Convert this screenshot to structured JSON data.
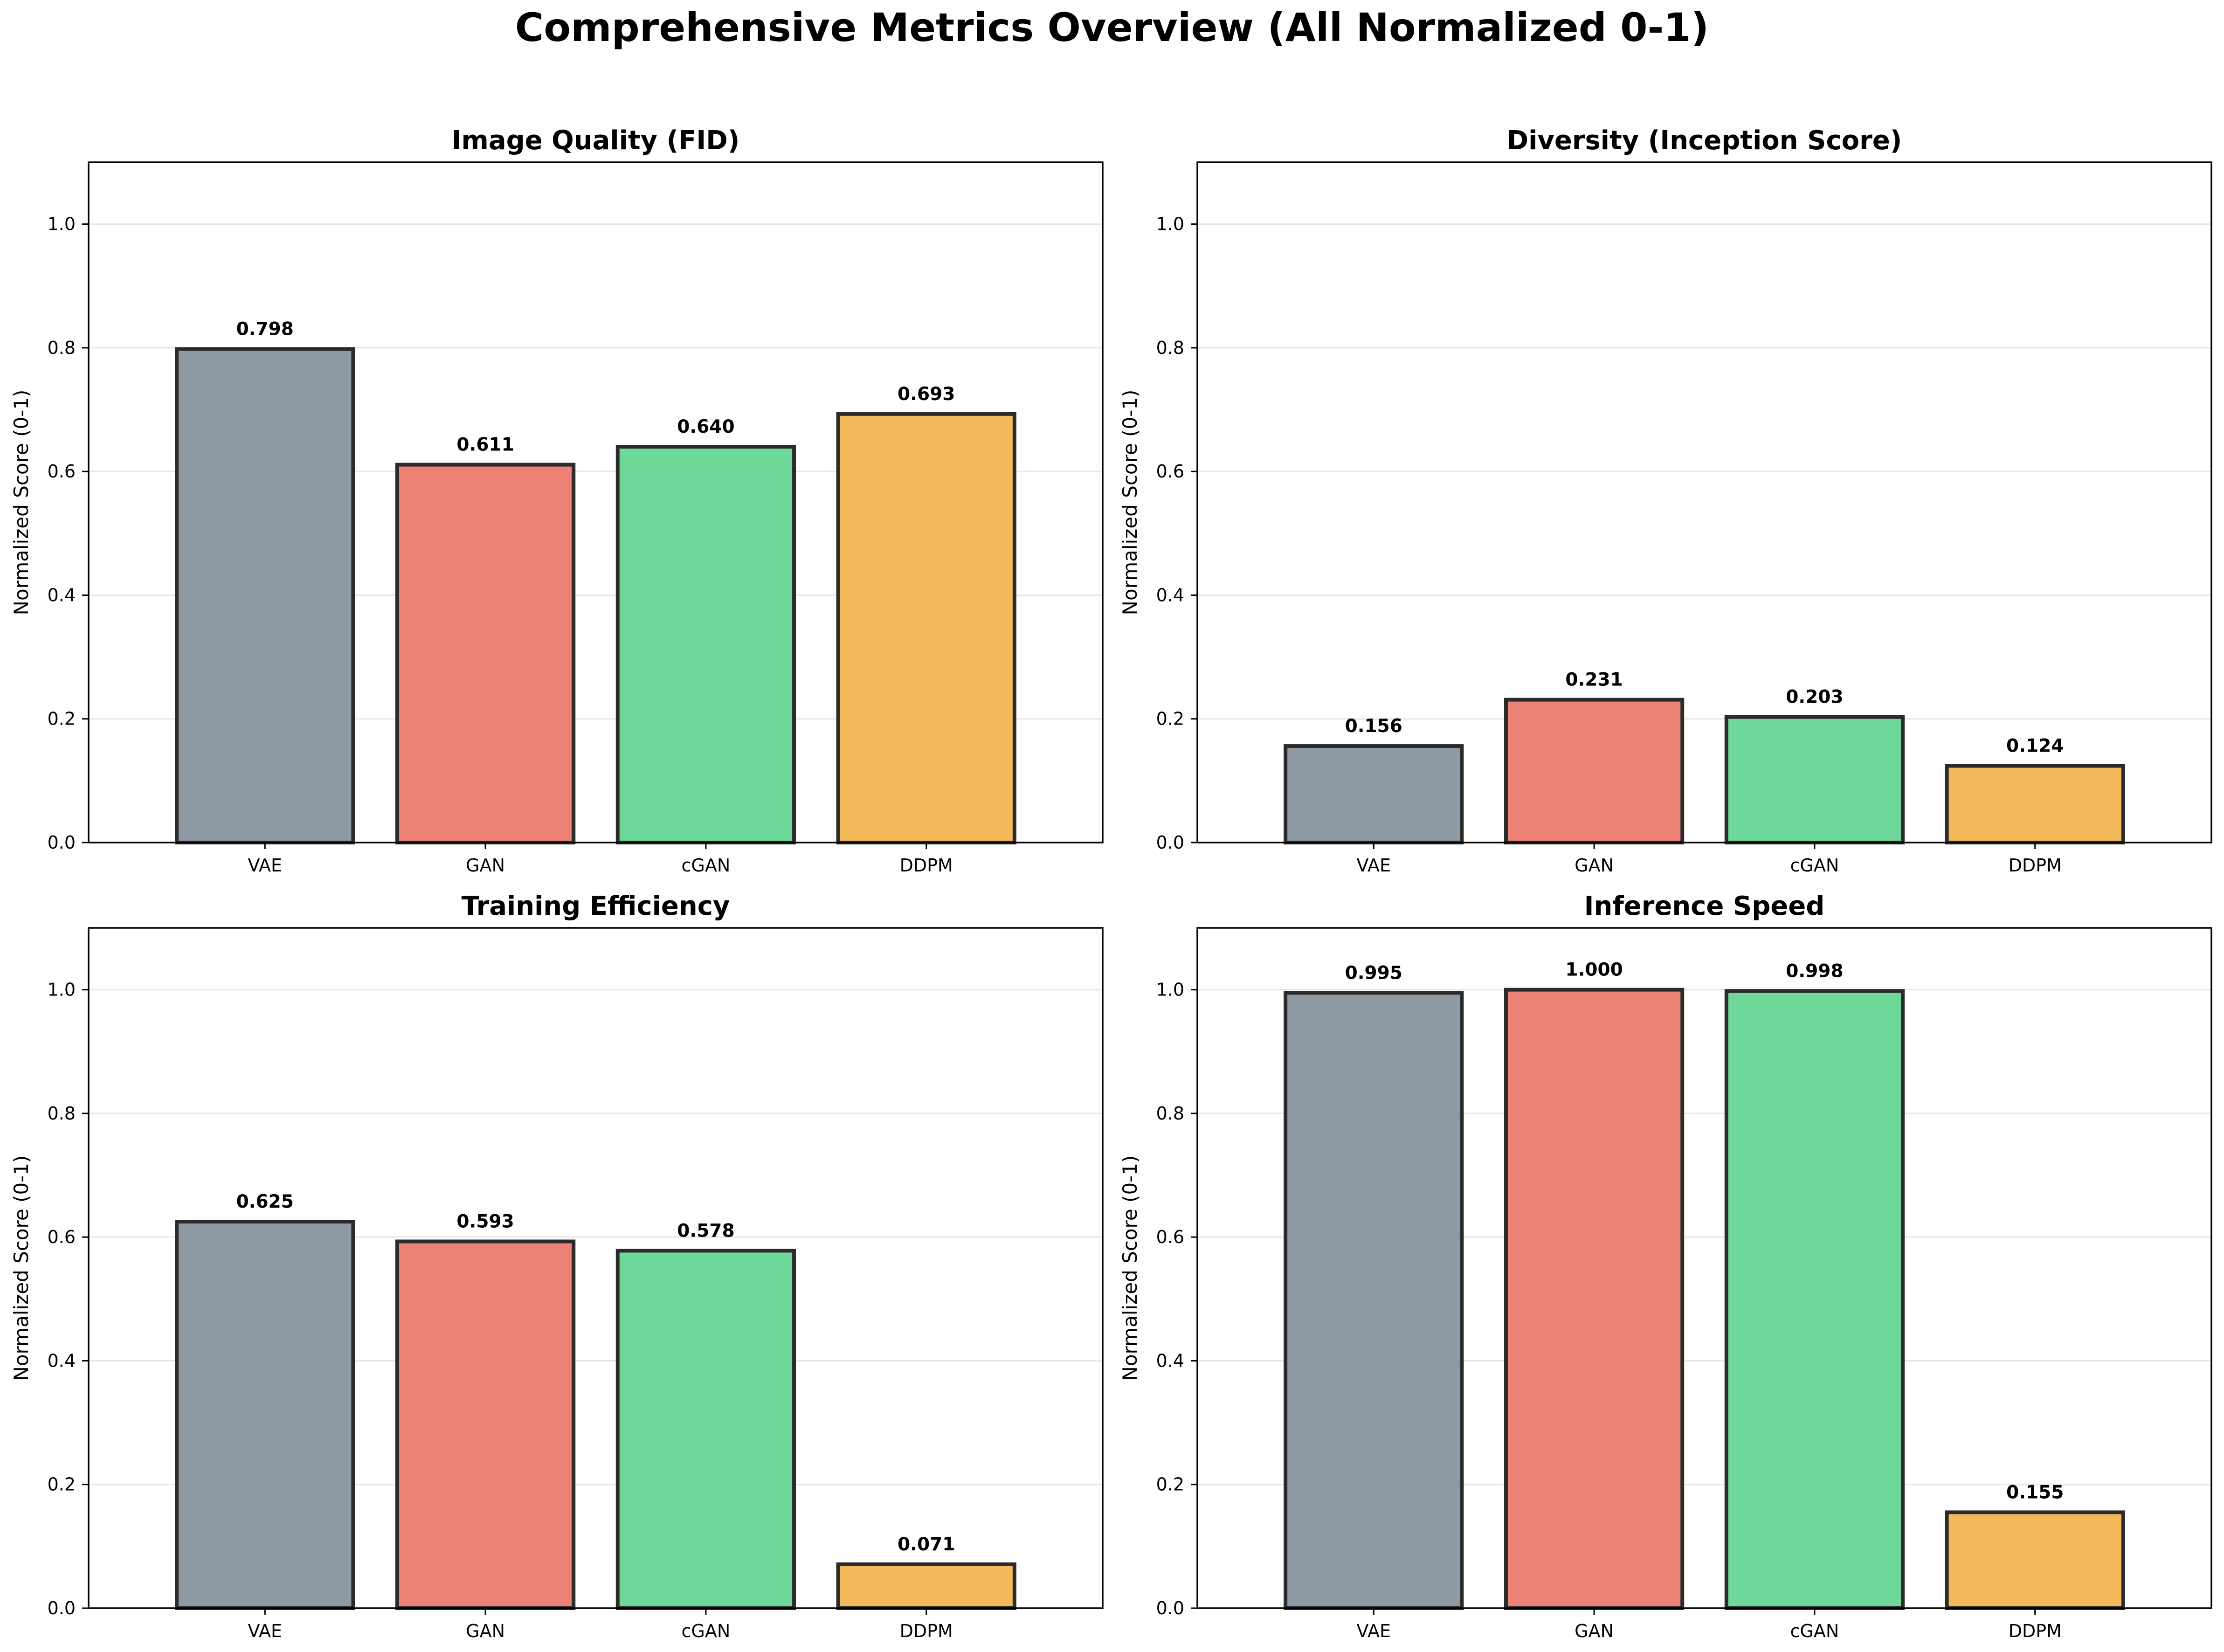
{
  "title": "Comprehensive Metrics Overview (All Normalized 0-1)",
  "colors": {
    "VAE": "#8e99a4",
    "GAN": "#ee8176",
    "cGAN": "#6ed898",
    "DDPM": "#f4b95a",
    "edge": "#2b2b2b",
    "grid": "#e6e6e6"
  },
  "chart_data": [
    {
      "type": "bar",
      "title": "Image Quality (FID)",
      "ylabel": "Normalized Score (0-1)",
      "categories": [
        "VAE",
        "GAN",
        "cGAN",
        "DDPM"
      ],
      "values": [
        0.798,
        0.611,
        0.64,
        0.693
      ],
      "value_labels": [
        "0.798",
        "0.611",
        "0.640",
        "0.693"
      ],
      "ylim": [
        0,
        1.1
      ],
      "yticks": [
        0.0,
        0.2,
        0.4,
        0.6,
        0.8,
        1.0
      ],
      "ytick_labels": [
        "0.0",
        "0.2",
        "0.4",
        "0.6",
        "0.8",
        "1.0"
      ],
      "grid": "y"
    },
    {
      "type": "bar",
      "title": "Diversity (Inception Score)",
      "ylabel": "Normalized Score (0-1)",
      "categories": [
        "VAE",
        "GAN",
        "cGAN",
        "DDPM"
      ],
      "values": [
        0.156,
        0.231,
        0.203,
        0.124
      ],
      "value_labels": [
        "0.156",
        "0.231",
        "0.203",
        "0.124"
      ],
      "ylim": [
        0,
        1.1
      ],
      "yticks": [
        0.0,
        0.2,
        0.4,
        0.6,
        0.8,
        1.0
      ],
      "ytick_labels": [
        "0.0",
        "0.2",
        "0.4",
        "0.6",
        "0.8",
        "1.0"
      ],
      "grid": "y"
    },
    {
      "type": "bar",
      "title": "Training Efficiency",
      "ylabel": "Normalized Score (0-1)",
      "categories": [
        "VAE",
        "GAN",
        "cGAN",
        "DDPM"
      ],
      "values": [
        0.625,
        0.593,
        0.578,
        0.071
      ],
      "value_labels": [
        "0.625",
        "0.593",
        "0.578",
        "0.071"
      ],
      "ylim": [
        0,
        1.1
      ],
      "yticks": [
        0.0,
        0.2,
        0.4,
        0.6,
        0.8,
        1.0
      ],
      "ytick_labels": [
        "0.0",
        "0.2",
        "0.4",
        "0.6",
        "0.8",
        "1.0"
      ],
      "grid": "y"
    },
    {
      "type": "bar",
      "title": "Inference Speed",
      "ylabel": "Normalized Score (0-1)",
      "categories": [
        "VAE",
        "GAN",
        "cGAN",
        "DDPM"
      ],
      "values": [
        0.995,
        1.0,
        0.998,
        0.155
      ],
      "value_labels": [
        "0.995",
        "1.000",
        "0.998",
        "0.155"
      ],
      "ylim": [
        0,
        1.1
      ],
      "yticks": [
        0.0,
        0.2,
        0.4,
        0.6,
        0.8,
        1.0
      ],
      "ytick_labels": [
        "0.0",
        "0.2",
        "0.4",
        "0.6",
        "0.8",
        "1.0"
      ],
      "grid": "y"
    }
  ]
}
